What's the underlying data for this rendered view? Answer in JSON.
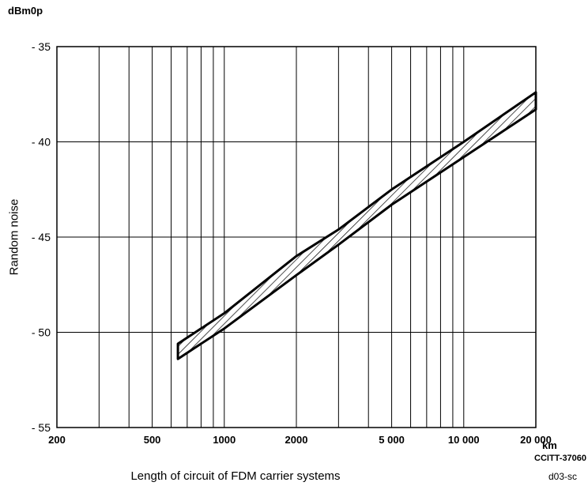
{
  "chart_data": {
    "type": "area",
    "title": "",
    "unit_label": "dBm0p",
    "ylabel": "Random noise",
    "xlabel": "Length of circuit of FDM carrier systems",
    "x_unit": "km",
    "x_scale": "log",
    "xlim": [
      200,
      20000
    ],
    "ylim": [
      -55,
      -35
    ],
    "grid": true,
    "x_ticks": [
      {
        "value": 200,
        "label": "200"
      },
      {
        "value": 500,
        "label": "500"
      },
      {
        "value": 1000,
        "label": "1000"
      },
      {
        "value": 2000,
        "label": "2000"
      },
      {
        "value": 5000,
        "label": "5 000"
      },
      {
        "value": 10000,
        "label": "10 000"
      },
      {
        "value": 20000,
        "label": "20 000"
      }
    ],
    "y_ticks": [
      {
        "value": -35,
        "label": "- 35"
      },
      {
        "value": -40,
        "label": "- 40"
      },
      {
        "value": -45,
        "label": "- 45"
      },
      {
        "value": -50,
        "label": "- 50"
      },
      {
        "value": -55,
        "label": "- 55"
      }
    ],
    "series": [
      {
        "x": [
          640,
          1000,
          2000,
          3000,
          5000,
          10000,
          20000
        ],
        "upper": [
          -50.6,
          -49.0,
          -46.0,
          -44.6,
          -42.5,
          -40.0,
          -37.4
        ],
        "lower": [
          -51.4,
          -49.8,
          -47.0,
          -45.4,
          -43.3,
          -40.8,
          -38.3
        ],
        "fill_pattern": "diagonal-hatch"
      }
    ]
  },
  "annotations": {
    "reference": "CCITT-37060",
    "source_code": "d03-sc"
  }
}
